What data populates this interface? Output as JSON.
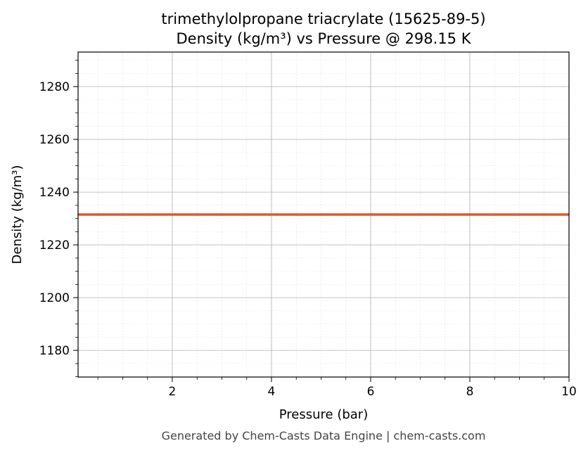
{
  "chart_data": {
    "type": "line",
    "title": "trimethylolpropane triacrylate (15625-89-5)",
    "subtitle": "Density (kg/m³) vs Pressure @ 298.15 K",
    "xlabel": "Pressure (bar)",
    "ylabel": "Density (kg/m³)",
    "xlim": [
      0.1,
      10
    ],
    "ylim": [
      1169.9,
      1293.1
    ],
    "xticks": [
      2,
      4,
      6,
      8,
      10
    ],
    "yticks": [
      1180,
      1200,
      1220,
      1240,
      1260,
      1280
    ],
    "grid": true,
    "series": [
      {
        "x": [
          0.1,
          10
        ],
        "y": [
          1231.5,
          1231.5
        ],
        "color": "#e0572a"
      }
    ]
  },
  "footer": "Generated by Chem-Casts Data Engine | chem-casts.com"
}
